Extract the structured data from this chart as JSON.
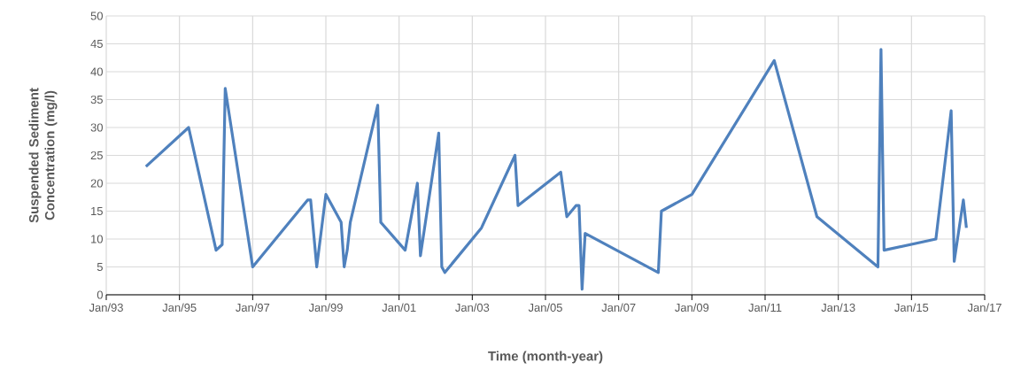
{
  "chart_data": {
    "type": "line",
    "xlabel": "Time (month-year)",
    "ylabel": "Suspended Sediment Concentration (mg/l)",
    "x": [
      "1994-02",
      "1995-04",
      "1996-01",
      "1996-03",
      "1996-04",
      "1997-01",
      "1998-07",
      "1998-08",
      "1998-09",
      "1998-10",
      "1999-01",
      "1999-06",
      "1999-07",
      "1999-08",
      "1999-09",
      "2000-06",
      "2000-07",
      "2001-03",
      "2001-07",
      "2001-08",
      "2002-02",
      "2002-03",
      "2002-04",
      "2003-04",
      "2004-03",
      "2004-04",
      "2005-06",
      "2005-08",
      "2005-11",
      "2005-12",
      "2006-01",
      "2006-02",
      "2008-02",
      "2008-03",
      "2009-01",
      "2011-04",
      "2012-06",
      "2014-02",
      "2014-03",
      "2014-04",
      "2015-09",
      "2016-02",
      "2016-03",
      "2016-06",
      "2016-07"
    ],
    "series": [
      {
        "color": "#4f81bd",
        "values": [
          23,
          30,
          8,
          9,
          37,
          5,
          17,
          17,
          11,
          5,
          18,
          13,
          5,
          8,
          13,
          34,
          13,
          8,
          20,
          7,
          29,
          5,
          4,
          12,
          25,
          16,
          22,
          14,
          16,
          16,
          1,
          11,
          4,
          15,
          18,
          42,
          14,
          5,
          44,
          8,
          10,
          33,
          6,
          17,
          12
        ]
      }
    ],
    "xlim": [
      "1993-01",
      "2017-01"
    ],
    "xticks": [
      {
        "value": "1993-01",
        "label": "Jan/93"
      },
      {
        "value": "1995-01",
        "label": "Jan/95"
      },
      {
        "value": "1997-01",
        "label": "Jan/97"
      },
      {
        "value": "1999-01",
        "label": "Jan/99"
      },
      {
        "value": "2001-01",
        "label": "Jan/01"
      },
      {
        "value": "2003-01",
        "label": "Jan/03"
      },
      {
        "value": "2005-01",
        "label": "Jan/05"
      },
      {
        "value": "2007-01",
        "label": "Jan/07"
      },
      {
        "value": "2009-01",
        "label": "Jan/09"
      },
      {
        "value": "2011-01",
        "label": "Jan/11"
      },
      {
        "value": "2013-01",
        "label": "Jan/13"
      },
      {
        "value": "2015-01",
        "label": "Jan/15"
      },
      {
        "value": "2017-01",
        "label": "Jan/17"
      }
    ],
    "ylim": [
      0,
      50
    ],
    "yticks": [
      0,
      5,
      10,
      15,
      20,
      25,
      30,
      35,
      40,
      45,
      50
    ],
    "grid": true,
    "legend": false,
    "marker": "none",
    "line_style": "solid"
  }
}
